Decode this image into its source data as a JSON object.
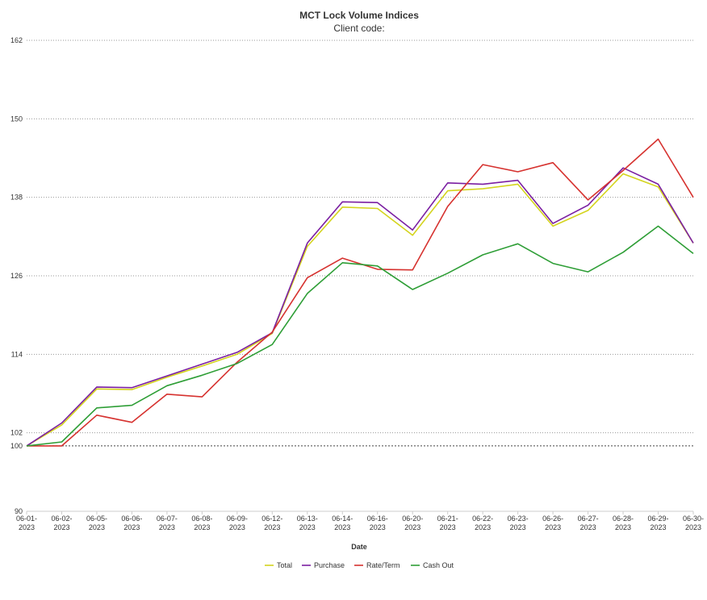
{
  "chart_data": {
    "type": "line",
    "title": "MCT Lock Volume Indices",
    "subtitle": "Client code:",
    "xlabel": "Date",
    "ylabel": "",
    "ylim": [
      90,
      162
    ],
    "yticks": [
      90,
      100,
      102,
      114,
      126,
      138,
      150,
      162
    ],
    "reference_line": 100,
    "grid": true,
    "legend_position": "bottom",
    "categories": [
      "06-01-2023",
      "06-02-2023",
      "06-05-2023",
      "06-06-2023",
      "06-07-2023",
      "06-08-2023",
      "06-09-2023",
      "06-12-2023",
      "06-13-2023",
      "06-14-2023",
      "06-16-2023",
      "06-20-2023",
      "06-21-2023",
      "06-22-2023",
      "06-23-2023",
      "06-26-2023",
      "06-27-2023",
      "06-28-2023",
      "06-29-2023",
      "06-30-2023"
    ],
    "tick_labels": [
      [
        "06-01-",
        "2023"
      ],
      [
        "06-02-",
        "2023"
      ],
      [
        "06-05-",
        "2023"
      ],
      [
        "06-06-",
        "2023"
      ],
      [
        "06-07-",
        "2023"
      ],
      [
        "06-08-",
        "2023"
      ],
      [
        "06-09-",
        "2023"
      ],
      [
        "06-12-",
        "2023"
      ],
      [
        "06-13-",
        "2023"
      ],
      [
        "06-14-",
        "2023"
      ],
      [
        "06-16-",
        "2023"
      ],
      [
        "06-20-",
        "2023"
      ],
      [
        "06-21-",
        "2023"
      ],
      [
        "06-22-",
        "2023"
      ],
      [
        "06-23-",
        "2023"
      ],
      [
        "06-26-",
        "2023"
      ],
      [
        "06-27-",
        "2023"
      ],
      [
        "06-28-",
        "2023"
      ],
      [
        "06-29-",
        "2023"
      ],
      [
        "06-30-",
        "2023"
      ]
    ],
    "series": [
      {
        "name": "Total",
        "color": "#d4d41e",
        "values": [
          100,
          103.2,
          108.7,
          108.6,
          110.5,
          112.2,
          114.0,
          117.2,
          130.5,
          136.5,
          136.3,
          132.2,
          139.0,
          139.3,
          140.0,
          133.6,
          136.0,
          141.6,
          139.6,
          131.0
        ]
      },
      {
        "name": "Purchase",
        "color": "#7b1fa2",
        "values": [
          100,
          103.5,
          109.0,
          108.9,
          110.7,
          112.5,
          114.3,
          117.3,
          131.0,
          137.3,
          137.2,
          133.0,
          140.2,
          140.0,
          140.6,
          134.0,
          136.8,
          142.5,
          140.0,
          131.0
        ]
      },
      {
        "name": "Rate/Term",
        "color": "#d6322f",
        "values": [
          100,
          100.0,
          104.7,
          103.6,
          107.9,
          107.5,
          112.8,
          117.4,
          125.7,
          128.7,
          127.0,
          126.9,
          136.6,
          143.0,
          141.9,
          143.3,
          137.6,
          142.1,
          146.9,
          138.0
        ]
      },
      {
        "name": "Cash Out",
        "color": "#2e9e36",
        "values": [
          100,
          100.6,
          105.8,
          106.2,
          109.2,
          110.8,
          112.6,
          115.5,
          123.3,
          128.0,
          127.5,
          123.9,
          126.4,
          129.2,
          130.9,
          127.9,
          126.6,
          129.6,
          133.6,
          129.4
        ]
      }
    ]
  }
}
